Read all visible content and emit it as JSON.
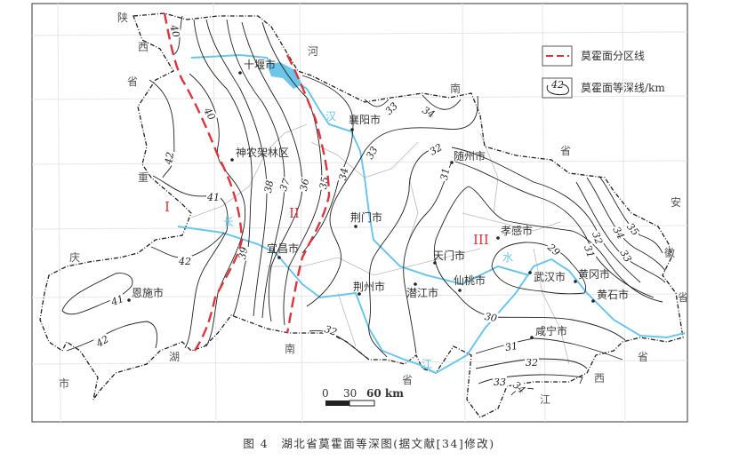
{
  "caption": "图 4　湖北省莫霍面等深图(据文献[34]修改)",
  "legend": {
    "zoning_line": "莫霍面分区线",
    "isoline": "莫霍面等深线/km",
    "isoline_sample_value": "42"
  },
  "scale_bar": {
    "labels": [
      "0",
      "30",
      "60 km"
    ]
  },
  "zones": [
    "I",
    "II",
    "III"
  ],
  "neighbors": [
    "陕",
    "西",
    "省",
    "重",
    "庆",
    "市",
    "湖",
    "南",
    "省",
    "河",
    "南",
    "省",
    "安",
    "徽",
    "省",
    "省",
    "西",
    "江"
  ],
  "rivers": [
    "汉",
    "长",
    "水",
    "江"
  ],
  "cities": [
    "十堰市",
    "襄阳市",
    "神农架林区",
    "荆门市",
    "随州市",
    "宜昌市",
    "孝感市",
    "恩施市",
    "荆州市",
    "天门市",
    "潜江市",
    "仙桃市",
    "武汉市",
    "黄冈市",
    "黄石市",
    "咸宁市"
  ],
  "contours": [
    {
      "value": "40"
    },
    {
      "value": "42"
    },
    {
      "value": "40"
    },
    {
      "value": "41"
    },
    {
      "value": "42"
    },
    {
      "value": "39"
    },
    {
      "value": "38"
    },
    {
      "value": "37"
    },
    {
      "value": "36"
    },
    {
      "value": "35"
    },
    {
      "value": "34"
    },
    {
      "value": "33"
    },
    {
      "value": "33"
    },
    {
      "value": "34"
    },
    {
      "value": "32"
    },
    {
      "value": "32"
    },
    {
      "value": "31"
    },
    {
      "value": "30"
    },
    {
      "value": "29"
    },
    {
      "value": "31"
    },
    {
      "value": "32"
    },
    {
      "value": "33"
    },
    {
      "value": "34"
    },
    {
      "value": "41"
    },
    {
      "value": "42"
    },
    {
      "value": "35"
    },
    {
      "value": "34"
    },
    {
      "value": "33"
    },
    {
      "value": "32"
    },
    {
      "value": "31"
    }
  ],
  "colors": {
    "zoning_line": "#d9363e",
    "river": "#6cc6ea",
    "contour": "#222222",
    "boundary": "#222222",
    "grid": "#e6e6e6"
  }
}
